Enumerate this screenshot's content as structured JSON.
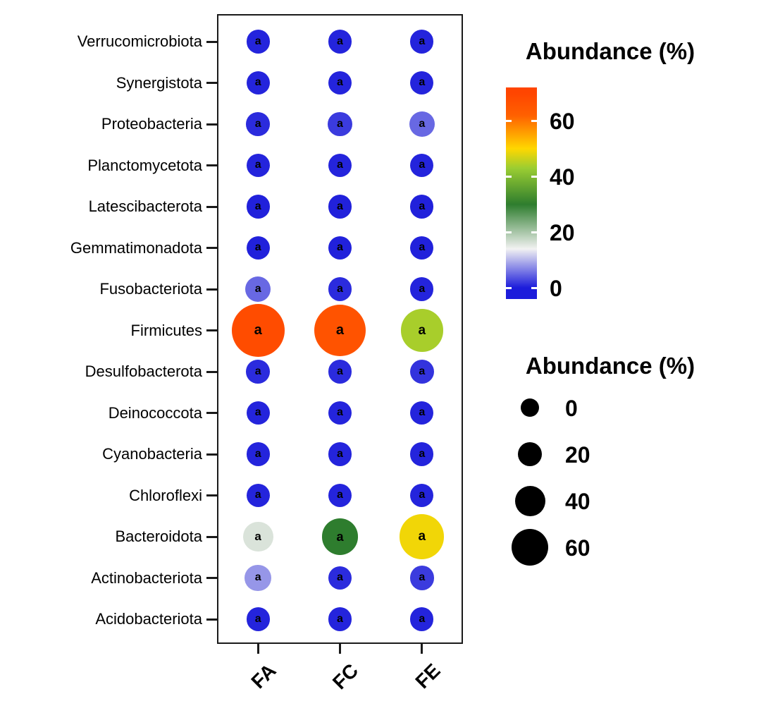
{
  "chart_data": {
    "type": "heatmap",
    "subtype": "dot-plot-abundance",
    "title": "",
    "x_categories": [
      "FA",
      "FC",
      "FE"
    ],
    "y_categories": [
      "Verrucomicrobiota",
      "Synergistota",
      "Proteobacteria",
      "Planctomycetota",
      "Latescibacterota",
      "Gemmatimonadota",
      "Fusobacteriota",
      "Firmicutes",
      "Desulfobacterota",
      "Deinococcota",
      "Cyanobacteria",
      "Chloroflexi",
      "Bacteroidota",
      "Actinobacteriota",
      "Acidobacteriota"
    ],
    "unit": "%",
    "point_label": "a",
    "values_note": "rows follow y_categories (top to bottom), columns follow x_categories [FA, FC, FE]; abundance in percent, estimated from dot color/size",
    "values": [
      [
        0.5,
        0.5,
        0.5
      ],
      [
        0.5,
        0.5,
        0.5
      ],
      [
        1,
        2,
        5
      ],
      [
        0.5,
        0.5,
        0.5
      ],
      [
        0.3,
        0.3,
        0.3
      ],
      [
        0.3,
        0.3,
        0.3
      ],
      [
        5,
        1,
        0.5
      ],
      [
        68,
        66,
        44
      ],
      [
        1,
        1,
        1.5
      ],
      [
        0.5,
        0.5,
        0.5
      ],
      [
        0.5,
        0.5,
        0.5
      ],
      [
        0.5,
        0.5,
        0.5
      ],
      [
        16,
        30,
        49
      ],
      [
        8,
        1,
        2
      ],
      [
        0.5,
        0.5,
        0.5
      ]
    ],
    "color_scale": {
      "title": "Abundance (%)",
      "ticks": [
        0,
        20,
        40,
        60
      ],
      "bar_domain": [
        -4,
        72
      ],
      "stops": [
        {
          "value": 0,
          "color": "#1c1cdb"
        },
        {
          "value": 14,
          "color": "#f2f2f2"
        },
        {
          "value": 30,
          "color": "#2e7d2e"
        },
        {
          "value": 43,
          "color": "#9acd32"
        },
        {
          "value": 50,
          "color": "#ffd700"
        },
        {
          "value": 62,
          "color": "#ff6000"
        },
        {
          "value": 70,
          "color": "#ff4500"
        }
      ]
    },
    "size_scale": {
      "title": "Abundance (%)",
      "ticks": [
        0,
        20,
        40,
        60
      ],
      "legend_dot_color": "#000000"
    },
    "legend_position": "right",
    "grid": "off",
    "panel_border": "#1a1a1a",
    "background": "#ffffff"
  }
}
